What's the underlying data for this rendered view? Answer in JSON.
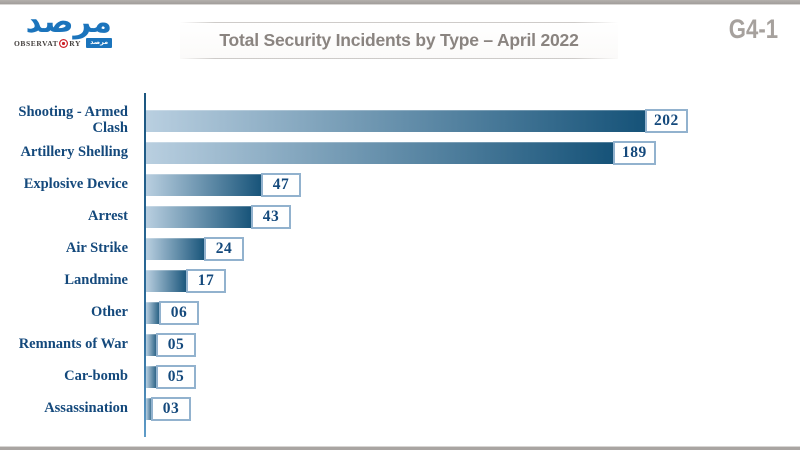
{
  "header": {
    "title": "Total Security Incidents by Type – April 2022",
    "page_code": "G4-1"
  },
  "logo": {
    "arabic_wordmark": "مرصد",
    "latin_prefix": "OBSERVAT",
    "latin_suffix": "RY",
    "badge_text": "مرصد",
    "brand_blue": "#1b74bc",
    "brand_red": "#cc2229"
  },
  "chart_data": {
    "type": "bar",
    "orientation": "horizontal",
    "title": "Total Security Incidents by Type – April 2022",
    "categories": [
      "Shooting - Armed Clash",
      "Artillery Shelling",
      "Explosive Device",
      "Arrest",
      "Air Strike",
      "Landmine",
      "Other",
      "Remnants of War",
      "Car-bomb",
      "Assassination"
    ],
    "values": [
      202,
      189,
      47,
      43,
      24,
      17,
      6,
      5,
      5,
      3
    ],
    "value_labels": [
      "202",
      "189",
      "47",
      "43",
      "24",
      "17",
      "06",
      "05",
      "05",
      "03"
    ],
    "xlim": [
      0,
      202
    ],
    "xlabel": "",
    "ylabel": "",
    "grid": false,
    "legend": false,
    "bar_gradient": [
      "#b9cfe0",
      "#155278"
    ],
    "label_color": "#14497c",
    "value_box_border": "#92b2ce",
    "axis_color": "#1c5680"
  }
}
